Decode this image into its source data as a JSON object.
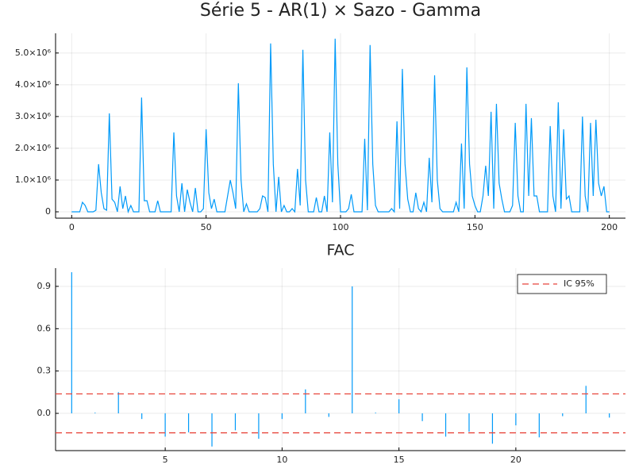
{
  "chart_data": [
    {
      "type": "line",
      "title": "Série 5 - AR(1) × Sazo - Gamma",
      "grid": true,
      "x": [
        0,
        1,
        2,
        3,
        4,
        5,
        6,
        7,
        8,
        9,
        10,
        11,
        12,
        13,
        14,
        15,
        16,
        17,
        18,
        19,
        20,
        21,
        22,
        23,
        24,
        25,
        26,
        27,
        28,
        29,
        30,
        31,
        32,
        33,
        34,
        35,
        36,
        37,
        38,
        39,
        40,
        41,
        42,
        43,
        44,
        45,
        46,
        47,
        48,
        49,
        50,
        51,
        52,
        53,
        54,
        55,
        56,
        57,
        58,
        59,
        60,
        61,
        62,
        63,
        64,
        65,
        66,
        67,
        68,
        69,
        70,
        71,
        72,
        73,
        74,
        75,
        76,
        77,
        78,
        79,
        80,
        81,
        82,
        83,
        84,
        85,
        86,
        87,
        88,
        89,
        90,
        91,
        92,
        93,
        94,
        95,
        96,
        97,
        98,
        99,
        100,
        101,
        102,
        103,
        104,
        105,
        106,
        107,
        108,
        109,
        110,
        111,
        112,
        113,
        114,
        115,
        116,
        117,
        118,
        119,
        120,
        121,
        122,
        123,
        124,
        125,
        126,
        127,
        128,
        129,
        130,
        131,
        132,
        133,
        134,
        135,
        136,
        137,
        138,
        139,
        140,
        141,
        142,
        143,
        144,
        145,
        146,
        147,
        148,
        149,
        150,
        151,
        152,
        153,
        154,
        155,
        156,
        157,
        158,
        159,
        160,
        161,
        162,
        163,
        164,
        165,
        166,
        167,
        168,
        169,
        170,
        171,
        172,
        173,
        174,
        175,
        176,
        177,
        178,
        179,
        180,
        181,
        182,
        183,
        184,
        185,
        186,
        187,
        188,
        189,
        190,
        191,
        192,
        193,
        194,
        195,
        196,
        197,
        198,
        199,
        200
      ],
      "series": [
        {
          "color": "#009af9",
          "values": [
            0,
            0,
            0,
            0,
            300000,
            200000,
            0,
            0,
            0,
            50000,
            1500000,
            600000,
            100000,
            50000,
            3100000,
            400000,
            300000,
            0,
            800000,
            100000,
            500000,
            0,
            200000,
            0,
            0,
            0,
            3600000,
            350000,
            350000,
            0,
            0,
            0,
            350000,
            0,
            0,
            0,
            0,
            0,
            2500000,
            500000,
            0,
            900000,
            0,
            700000,
            300000,
            0,
            750000,
            0,
            0,
            100000,
            2600000,
            600000,
            100000,
            400000,
            0,
            0,
            0,
            0,
            500000,
            1000000,
            600000,
            100000,
            4050000,
            1000000,
            0,
            250000,
            0,
            0,
            0,
            0,
            100000,
            500000,
            450000,
            0,
            5300000,
            1500000,
            0,
            1100000,
            0,
            200000,
            0,
            0,
            100000,
            0,
            1350000,
            200000,
            5100000,
            1000000,
            0,
            0,
            0,
            450000,
            0,
            0,
            500000,
            0,
            2500000,
            300000,
            5450000,
            1500000,
            0,
            0,
            0,
            100000,
            550000,
            0,
            0,
            0,
            0,
            2300000,
            50000,
            5250000,
            1500000,
            200000,
            0,
            0,
            0,
            0,
            0,
            100000,
            0,
            2850000,
            100000,
            4500000,
            1500000,
            400000,
            0,
            0,
            600000,
            100000,
            0,
            300000,
            0,
            1700000,
            300000,
            4300000,
            1000000,
            100000,
            0,
            0,
            0,
            0,
            0,
            300000,
            0,
            2150000,
            100000,
            4550000,
            1500000,
            500000,
            200000,
            0,
            0,
            500000,
            1450000,
            500000,
            3150000,
            100000,
            3400000,
            900000,
            400000,
            0,
            0,
            0,
            200000,
            2800000,
            500000,
            0,
            0,
            3400000,
            500000,
            2950000,
            500000,
            500000,
            0,
            0,
            0,
            0,
            2700000,
            500000,
            0,
            3450000,
            100000,
            2600000,
            400000,
            500000,
            0,
            0,
            0,
            0,
            3000000,
            500000,
            0,
            2800000,
            500000,
            2900000,
            900000,
            500000,
            800000,
            0,
            0
          ]
        }
      ],
      "xlim": [
        -6,
        206
      ],
      "xticks": [
        0,
        50,
        100,
        150,
        200
      ],
      "ylim": [
        -200000,
        5620000
      ],
      "yticks": [
        0,
        {
          "value": 1000000,
          "label": "1.0×10⁶"
        },
        {
          "value": 2000000,
          "label": "2.0×10⁶"
        },
        {
          "value": 3000000,
          "label": "3.0×10⁶"
        },
        {
          "value": 4000000,
          "label": "4.0×10⁶"
        },
        {
          "value": 5000000,
          "label": "5.0×10⁶"
        }
      ]
    },
    {
      "type": "stem",
      "title": "FAC",
      "grid": true,
      "legend": "top-right",
      "x": [
        1,
        2,
        3,
        4,
        5,
        6,
        7,
        8,
        9,
        10,
        11,
        12,
        13,
        14,
        15,
        16,
        17,
        18,
        19,
        20,
        21,
        22,
        23,
        24
      ],
      "series": [
        {
          "color": "#009af9",
          "values": [
            1.0,
            0.005,
            0.15,
            -0.04,
            -0.165,
            -0.135,
            -0.235,
            -0.12,
            -0.18,
            -0.04,
            0.17,
            -0.025,
            0.9,
            0.005,
            0.1,
            -0.055,
            -0.165,
            -0.13,
            -0.215,
            -0.085,
            -0.17,
            -0.02,
            0.195,
            -0.03
          ]
        }
      ],
      "reference_lines": {
        "name": "IC 95%",
        "color": "#e8453c",
        "style": "dashed",
        "values": [
          0.138,
          -0.138
        ]
      },
      "xlim": [
        0.31,
        24.69
      ],
      "xticks": [
        5,
        10,
        15,
        20
      ],
      "ylim": [
        -0.264,
        1.029
      ],
      "yticks": [
        {
          "value": 0,
          "label": "0.0"
        },
        0.3,
        0.6,
        0.9
      ]
    }
  ]
}
